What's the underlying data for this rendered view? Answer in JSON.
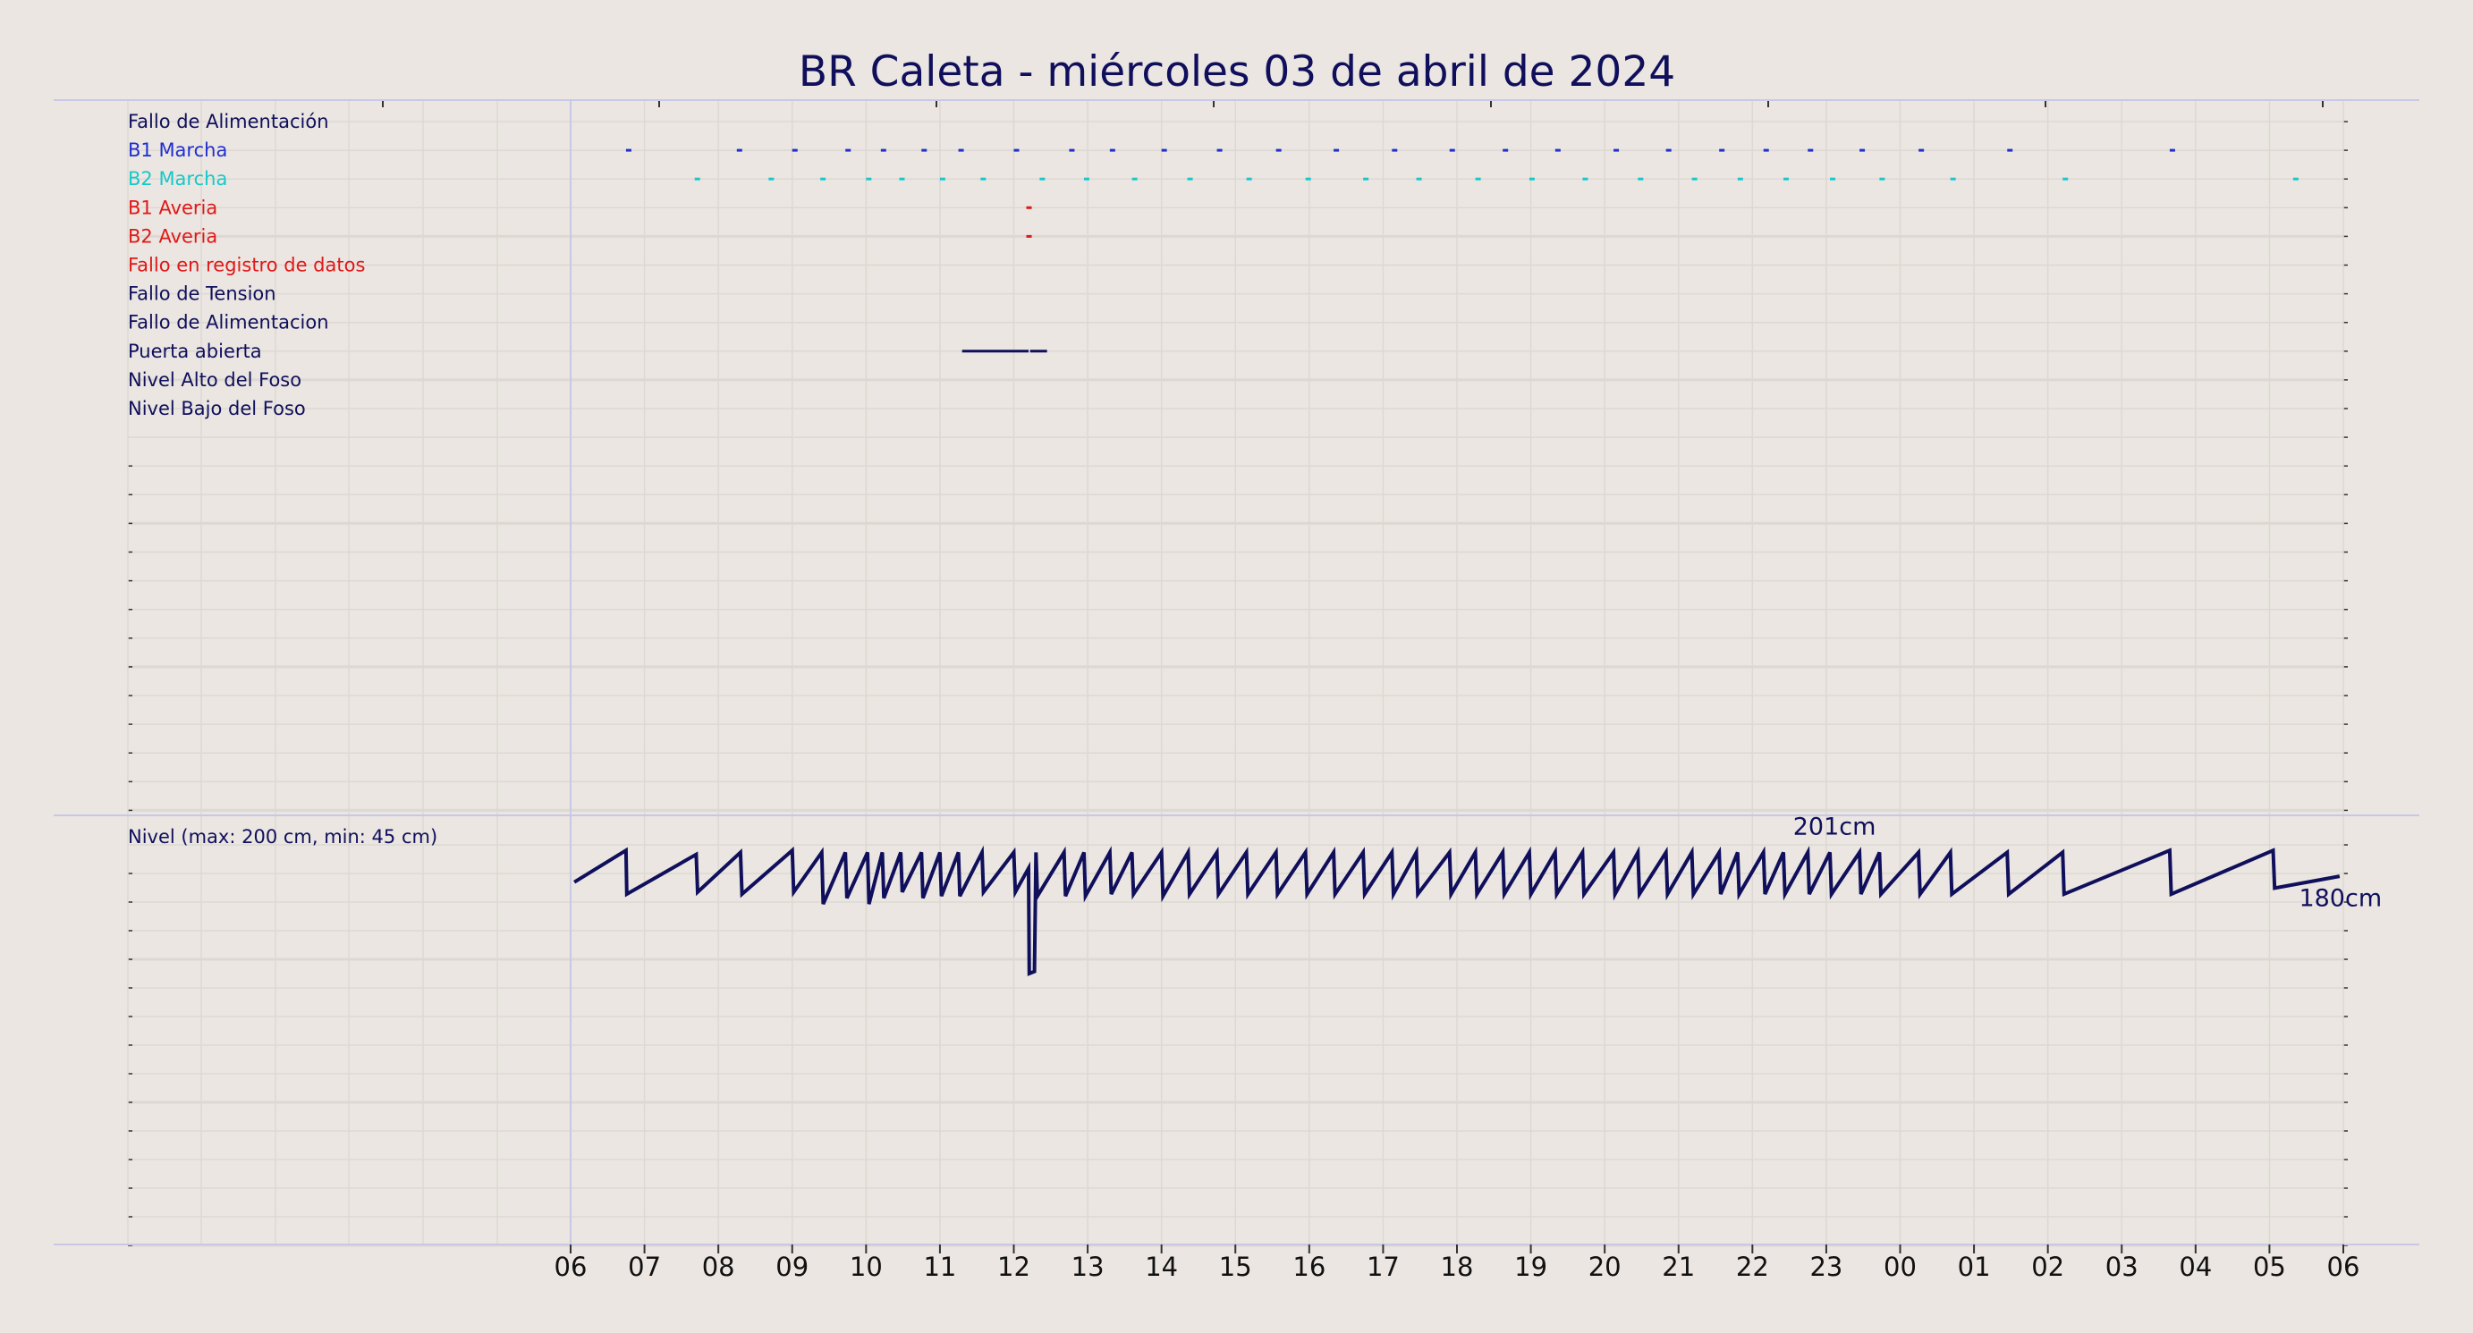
{
  "title": "BR Caleta   -   miércoles 03 de abril de 2024",
  "colors": {
    "background": "#ebe6e1",
    "title": "#0f0f5c",
    "navy": "#0f0f5c",
    "blue": "#1f2fd0",
    "cyan": "#18c8c8",
    "red": "#e01818",
    "grid": "#ddd8d2",
    "separator": "#c8c8e6"
  },
  "chart_data": [
    {
      "type": "timeline",
      "name": "signals",
      "x_unit": "hour",
      "xlim": [
        0,
        24
      ],
      "signals": [
        {
          "label": "Fallo de Alimentación",
          "color": "#0f0f5c",
          "events": []
        },
        {
          "label": "B1 Marcha",
          "color": "#1f2fd0",
          "events": [
            [
              0.75,
              0.8
            ],
            [
              2.25,
              2.3
            ],
            [
              3.0,
              3.05
            ],
            [
              3.72,
              3.77
            ],
            [
              4.2,
              4.25
            ],
            [
              4.75,
              4.8
            ],
            [
              5.25,
              5.3
            ],
            [
              6.0,
              6.05
            ],
            [
              6.75,
              6.8
            ],
            [
              7.3,
              7.35
            ],
            [
              8.0,
              8.05
            ],
            [
              8.75,
              8.82
            ],
            [
              9.55,
              9.62
            ],
            [
              10.33,
              10.4
            ],
            [
              11.12,
              11.18
            ],
            [
              11.9,
              11.95
            ],
            [
              12.62,
              12.68
            ],
            [
              13.33,
              13.38
            ],
            [
              14.12,
              14.18
            ],
            [
              14.83,
              14.88
            ],
            [
              15.55,
              15.6
            ],
            [
              16.15,
              16.2
            ],
            [
              16.75,
              16.8
            ],
            [
              17.45,
              17.5
            ],
            [
              18.25,
              18.3
            ],
            [
              19.45,
              19.5
            ],
            [
              21.65,
              21.7
            ]
          ]
        },
        {
          "label": "B2 Marcha",
          "color": "#18c8c8",
          "events": [
            [
              1.68,
              1.73
            ],
            [
              2.68,
              2.73
            ],
            [
              3.38,
              3.43
            ],
            [
              4.0,
              4.05
            ],
            [
              4.45,
              4.5
            ],
            [
              5.0,
              5.05
            ],
            [
              5.55,
              5.62
            ],
            [
              6.35,
              6.42
            ],
            [
              6.95,
              7.0
            ],
            [
              7.6,
              7.65
            ],
            [
              8.35,
              8.4
            ],
            [
              9.15,
              9.2
            ],
            [
              9.95,
              10.0
            ],
            [
              10.73,
              10.78
            ],
            [
              11.45,
              11.5
            ],
            [
              12.25,
              12.3
            ],
            [
              12.98,
              13.03
            ],
            [
              13.7,
              13.75
            ],
            [
              14.45,
              14.5
            ],
            [
              15.18,
              15.23
            ],
            [
              15.8,
              15.85
            ],
            [
              16.42,
              16.47
            ],
            [
              17.05,
              17.1
            ],
            [
              17.72,
              17.78
            ],
            [
              18.68,
              18.73
            ],
            [
              20.2,
              20.25
            ],
            [
              23.32,
              23.37
            ]
          ]
        },
        {
          "label": "B1 Averia",
          "color": "#e01818",
          "events": [
            [
              6.17,
              6.21
            ]
          ]
        },
        {
          "label": "B2 Averia",
          "color": "#e01818",
          "events": [
            [
              6.17,
              6.21
            ]
          ]
        },
        {
          "label": "Fallo en registro de datos",
          "color": "#e01818",
          "events": []
        },
        {
          "label": "Fallo de Tension",
          "color": "#0f0f5c",
          "events": []
        },
        {
          "label": "Fallo de Alimentacion",
          "color": "#0f0f5c",
          "events": []
        },
        {
          "label": "Puerta abierta",
          "color": "#0f0f5c",
          "events": [
            [
              5.3,
              6.2
            ],
            [
              6.22,
              6.45
            ]
          ]
        },
        {
          "label": "Nivel Alto del Foso",
          "color": "#0f0f5c",
          "events": []
        },
        {
          "label": "Nivel Bajo del Foso",
          "color": "#0f0f5c",
          "events": []
        }
      ]
    },
    {
      "type": "line",
      "name": "nivel",
      "label": "Nivel (max: 200 cm, min: 45 cm)",
      "x_unit": "hour",
      "xlim": [
        0,
        24
      ],
      "ylim": [
        0,
        270
      ],
      "color": "#0f0f5c",
      "style": "step",
      "x_ticks": [
        "06",
        "07",
        "08",
        "09",
        "10",
        "11",
        "12",
        "13",
        "14",
        "15",
        "16",
        "17",
        "18",
        "19",
        "20",
        "21",
        "22",
        "23",
        "00",
        "01",
        "02",
        "03",
        "04",
        "05",
        "06"
      ],
      "points": [
        [
          0.05,
          183
        ],
        [
          0.75,
          199
        ],
        [
          0.76,
          177
        ],
        [
          1.7,
          197
        ],
        [
          1.72,
          178
        ],
        [
          2.3,
          198
        ],
        [
          2.32,
          177
        ],
        [
          3.0,
          199
        ],
        [
          3.02,
          178
        ],
        [
          3.4,
          198
        ],
        [
          3.42,
          172
        ],
        [
          3.72,
          198
        ],
        [
          3.74,
          175
        ],
        [
          4.02,
          198
        ],
        [
          4.04,
          172
        ],
        [
          4.22,
          198
        ],
        [
          4.24,
          175
        ],
        [
          4.47,
          198
        ],
        [
          4.49,
          178
        ],
        [
          4.75,
          198
        ],
        [
          4.77,
          175
        ],
        [
          5.0,
          198
        ],
        [
          5.02,
          176
        ],
        [
          5.25,
          198
        ],
        [
          5.27,
          176
        ],
        [
          5.57,
          198
        ],
        [
          5.59,
          178
        ],
        [
          6.0,
          198
        ],
        [
          6.02,
          178
        ],
        [
          6.2,
          190
        ],
        [
          6.21,
          137
        ],
        [
          6.28,
          138
        ],
        [
          6.3,
          198
        ],
        [
          6.32,
          176
        ],
        [
          6.68,
          198
        ],
        [
          6.7,
          176
        ],
        [
          6.95,
          198
        ],
        [
          6.97,
          176
        ],
        [
          7.3,
          198
        ],
        [
          7.32,
          177
        ],
        [
          7.6,
          198
        ],
        [
          7.62,
          177
        ],
        [
          8.0,
          198
        ],
        [
          8.02,
          176
        ],
        [
          8.36,
          198
        ],
        [
          8.38,
          177
        ],
        [
          8.75,
          198
        ],
        [
          8.77,
          177
        ],
        [
          9.15,
          198
        ],
        [
          9.17,
          177
        ],
        [
          9.55,
          198
        ],
        [
          9.57,
          177
        ],
        [
          9.95,
          198
        ],
        [
          9.97,
          177
        ],
        [
          10.33,
          198
        ],
        [
          10.35,
          177
        ],
        [
          10.73,
          198
        ],
        [
          10.75,
          177
        ],
        [
          11.12,
          198
        ],
        [
          11.14,
          177
        ],
        [
          11.45,
          198
        ],
        [
          11.47,
          177
        ],
        [
          11.9,
          198
        ],
        [
          11.92,
          177
        ],
        [
          12.25,
          198
        ],
        [
          12.27,
          177
        ],
        [
          12.62,
          198
        ],
        [
          12.64,
          177
        ],
        [
          12.98,
          198
        ],
        [
          13.0,
          177
        ],
        [
          13.33,
          198
        ],
        [
          13.35,
          177
        ],
        [
          13.7,
          198
        ],
        [
          13.72,
          177
        ],
        [
          14.12,
          198
        ],
        [
          14.14,
          177
        ],
        [
          14.45,
          198
        ],
        [
          14.47,
          177
        ],
        [
          14.83,
          198
        ],
        [
          14.85,
          177
        ],
        [
          15.18,
          198
        ],
        [
          15.2,
          177
        ],
        [
          15.55,
          198
        ],
        [
          15.57,
          177
        ],
        [
          15.8,
          198
        ],
        [
          15.82,
          177
        ],
        [
          16.15,
          198
        ],
        [
          16.17,
          177
        ],
        [
          16.42,
          198
        ],
        [
          16.44,
          177
        ],
        [
          16.75,
          198
        ],
        [
          16.77,
          177
        ],
        [
          17.05,
          198
        ],
        [
          17.07,
          177
        ],
        [
          17.45,
          198
        ],
        [
          17.47,
          177
        ],
        [
          17.72,
          198
        ],
        [
          17.74,
          177
        ],
        [
          18.25,
          198
        ],
        [
          18.27,
          177
        ],
        [
          18.68,
          198
        ],
        [
          18.7,
          177
        ],
        [
          19.45,
          198
        ],
        [
          19.47,
          177
        ],
        [
          20.2,
          198
        ],
        [
          20.22,
          177
        ],
        [
          21.65,
          199
        ],
        [
          21.67,
          177
        ],
        [
          23.05,
          199
        ],
        [
          23.07,
          180
        ],
        [
          23.95,
          186
        ]
      ],
      "annotations": [
        {
          "text": "201cm",
          "x": 16.55,
          "y": 207
        },
        {
          "text": "180cm",
          "x": 23.4,
          "y": 171
        }
      ]
    }
  ]
}
